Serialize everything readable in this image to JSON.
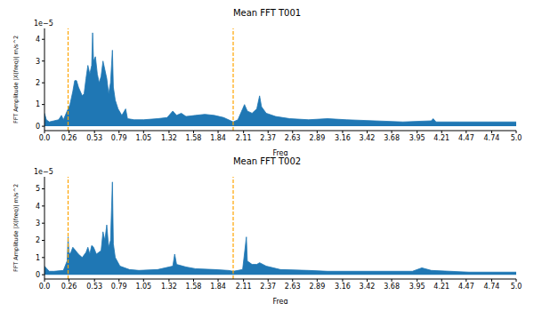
{
  "chart_data": [
    {
      "type": "area",
      "title": "Mean FFT T001",
      "x_label": "Freq",
      "y_label": "FFT Amplitude |X(freq)| m/s^2",
      "annotation": "1e−5",
      "color": "#1f77b4",
      "x": [
        0.0,
        0.02,
        0.05,
        0.1,
        0.15,
        0.18,
        0.2,
        0.25,
        0.27,
        0.3,
        0.32,
        0.34,
        0.36,
        0.38,
        0.4,
        0.42,
        0.44,
        0.46,
        0.48,
        0.5,
        0.51,
        0.52,
        0.54,
        0.56,
        0.58,
        0.6,
        0.62,
        0.64,
        0.66,
        0.68,
        0.7,
        0.72,
        0.73,
        0.75,
        0.78,
        0.82,
        0.86,
        0.88,
        0.95,
        1.05,
        1.2,
        1.3,
        1.36,
        1.4,
        1.45,
        1.5,
        1.6,
        1.7,
        1.8,
        1.9,
        2.0,
        2.05,
        2.1,
        2.12,
        2.15,
        2.2,
        2.25,
        2.28,
        2.3,
        2.35,
        2.45,
        2.6,
        2.8,
        3.0,
        3.2,
        3.5,
        3.8,
        4.1,
        4.12,
        4.15,
        4.4,
        4.7,
        5.0
      ],
      "values": [
        0.6,
        0.3,
        0.2,
        0.25,
        0.3,
        0.5,
        0.3,
        0.8,
        1.0,
        1.6,
        2.1,
        2.1,
        1.8,
        1.6,
        1.4,
        1.5,
        2.2,
        2.8,
        2.4,
        2.8,
        4.3,
        3.0,
        3.2,
        2.4,
        2.0,
        2.3,
        3.0,
        2.6,
        2.2,
        1.5,
        2.0,
        3.5,
        1.8,
        1.2,
        0.8,
        0.5,
        0.8,
        0.35,
        0.3,
        0.3,
        0.35,
        0.4,
        0.7,
        0.5,
        0.6,
        0.45,
        0.5,
        0.55,
        0.5,
        0.4,
        0.2,
        0.3,
        0.8,
        1.0,
        0.7,
        0.6,
        0.8,
        1.4,
        0.9,
        0.6,
        0.45,
        0.35,
        0.3,
        0.35,
        0.3,
        0.25,
        0.2,
        0.25,
        0.35,
        0.2,
        0.2,
        0.2,
        0.2
      ],
      "xlim": [
        0,
        5
      ],
      "xticks": [
        {
          "value": 0,
          "label": "0.0"
        },
        0.26,
        0.53,
        0.79,
        1.05,
        1.32,
        1.58,
        1.84,
        2.11,
        2.37,
        2.63,
        2.89,
        3.16,
        3.42,
        3.68,
        3.95,
        4.21,
        4.47,
        4.74,
        {
          "value": 5,
          "label": "5.0"
        }
      ],
      "ylim": [
        -0.2,
        4.5
      ],
      "yticks": [
        0,
        1,
        2,
        3,
        4
      ],
      "vlines": [
        {
          "x": 0.25,
          "color": "#ffa500",
          "line_style": "dashed"
        },
        {
          "x": 2.0,
          "color": "#ffa500",
          "line_style": "dashed"
        }
      ]
    },
    {
      "type": "area",
      "title": "Mean FFT T002",
      "x_label": "Freq",
      "y_label": "FFT Amplitude |X(freq)| m/s^2",
      "annotation": "1e−5",
      "color": "#1f77b4",
      "x": [
        0.0,
        0.05,
        0.1,
        0.2,
        0.24,
        0.25,
        0.26,
        0.28,
        0.3,
        0.33,
        0.36,
        0.4,
        0.44,
        0.46,
        0.48,
        0.5,
        0.52,
        0.55,
        0.6,
        0.62,
        0.64,
        0.66,
        0.68,
        0.7,
        0.72,
        0.73,
        0.75,
        0.8,
        0.9,
        1.0,
        1.2,
        1.36,
        1.38,
        1.4,
        1.5,
        1.6,
        1.8,
        1.95,
        2.0,
        2.1,
        2.14,
        2.15,
        2.2,
        2.25,
        2.28,
        2.35,
        2.5,
        2.8,
        3.0,
        3.5,
        3.9,
        4.0,
        4.1,
        4.5,
        5.0
      ],
      "values": [
        0.5,
        0.2,
        0.2,
        0.25,
        0.8,
        2.2,
        1.2,
        1.3,
        1.6,
        1.4,
        1.2,
        1.0,
        1.3,
        1.6,
        1.2,
        1.7,
        1.6,
        1.2,
        1.4,
        2.5,
        2.0,
        2.9,
        1.6,
        2.0,
        5.4,
        1.8,
        1.0,
        0.5,
        0.3,
        0.25,
        0.3,
        0.5,
        1.2,
        0.6,
        0.45,
        0.35,
        0.3,
        0.25,
        0.2,
        0.3,
        2.2,
        0.8,
        0.6,
        0.6,
        0.7,
        0.5,
        0.3,
        0.25,
        0.2,
        0.2,
        0.2,
        0.4,
        0.25,
        0.15,
        0.15
      ],
      "xlim": [
        0,
        5
      ],
      "xticks": [
        {
          "value": 0,
          "label": "0.0"
        },
        0.26,
        0.53,
        0.79,
        1.05,
        1.32,
        1.58,
        1.84,
        2.11,
        2.37,
        2.63,
        2.89,
        3.16,
        3.42,
        3.68,
        3.95,
        4.21,
        4.47,
        4.74,
        {
          "value": 5,
          "label": "5.0"
        }
      ],
      "ylim": [
        -0.25,
        5.7
      ],
      "yticks": [
        0,
        1,
        2,
        3,
        4,
        5
      ],
      "vlines": [
        {
          "x": 0.25,
          "color": "#ffa500",
          "line_style": "dashed"
        },
        {
          "x": 2.0,
          "color": "#ffa500",
          "line_style": "dashed"
        }
      ]
    }
  ]
}
